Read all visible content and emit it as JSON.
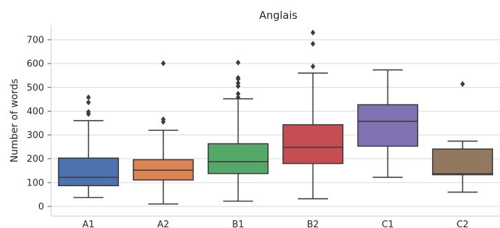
{
  "chart_data": {
    "type": "box",
    "title": "Anglais",
    "xlabel": "",
    "ylabel": "Number of words",
    "ylim": [
      -25,
      770
    ],
    "yticks": [
      0,
      100,
      200,
      300,
      400,
      500,
      600,
      700
    ],
    "grid": "horizontal",
    "categories": [
      "A1",
      "A2",
      "B1",
      "B2",
      "C1",
      "C2"
    ],
    "boxes": [
      {
        "category": "A1",
        "color": "#4c72b0",
        "whisker_low": 37,
        "q1": 87,
        "median": 122,
        "q3": 203,
        "whisker_high": 360,
        "outliers": [
          388,
          397,
          437,
          458
        ]
      },
      {
        "category": "A2",
        "color": "#dd8452",
        "whisker_low": 10,
        "q1": 111,
        "median": 152,
        "q3": 196,
        "whisker_high": 320,
        "outliers": [
          355,
          366,
          601
        ]
      },
      {
        "category": "B1",
        "color": "#55a868",
        "whisker_low": 22,
        "q1": 138,
        "median": 188,
        "q3": 263,
        "whisker_high": 452,
        "outliers": [
          458,
          473,
          505,
          518,
          535,
          540,
          604
        ]
      },
      {
        "category": "B2",
        "color": "#c44e52",
        "whisker_low": 32,
        "q1": 180,
        "median": 248,
        "q3": 343,
        "whisker_high": 560,
        "outliers": [
          588,
          683,
          730
        ]
      },
      {
        "category": "C1",
        "color": "#8172b3",
        "whisker_low": 122,
        "q1": 253,
        "median": 357,
        "q3": 427,
        "whisker_high": 573,
        "outliers": []
      },
      {
        "category": "C2",
        "color": "#937860",
        "whisker_low": 60,
        "q1": 133,
        "median": 137,
        "q3": 241,
        "whisker_high": 274,
        "outliers": [
          514
        ]
      }
    ]
  }
}
